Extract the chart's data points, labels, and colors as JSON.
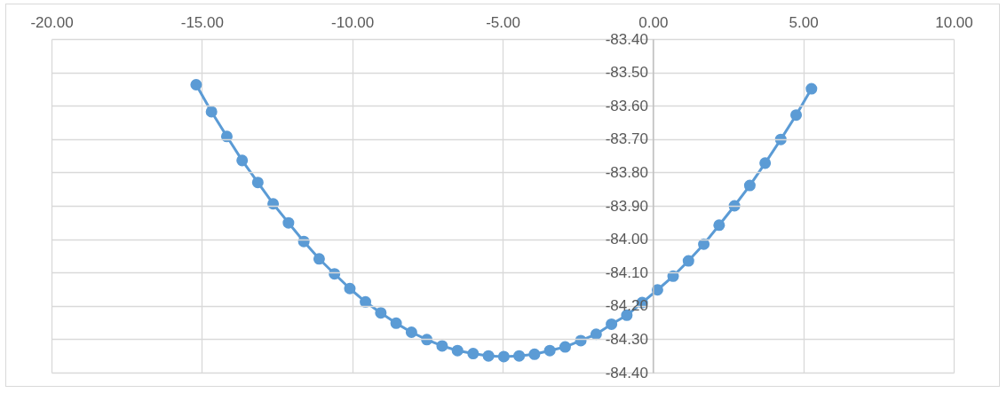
{
  "chart_data": {
    "type": "line",
    "line_style": "solid",
    "marker": "circle",
    "grid": true,
    "xlim": [
      -20,
      10
    ],
    "xticks": [
      {
        "value": -20,
        "label": "-20.00"
      },
      {
        "value": -15,
        "label": "-15.00"
      },
      {
        "value": -10,
        "label": "-10.00"
      },
      {
        "value": -5,
        "label": "-5.00"
      },
      {
        "value": 0,
        "label": "0.00"
      },
      {
        "value": 5,
        "label": "5.00"
      },
      {
        "value": 10,
        "label": "10.00"
      }
    ],
    "ylim": [
      -84.4,
      -83.4
    ],
    "yticks": [
      {
        "value": -84.4,
        "label": "-84.40"
      },
      {
        "value": -84.3,
        "label": "-84.30"
      },
      {
        "value": -84.2,
        "label": "-84.20"
      },
      {
        "value": -84.1,
        "label": "-84.10"
      },
      {
        "value": -84.0,
        "label": "-84.00"
      },
      {
        "value": -83.9,
        "label": "-83.90"
      },
      {
        "value": -83.8,
        "label": "-83.80"
      },
      {
        "value": -83.7,
        "label": "-83.70"
      },
      {
        "value": -83.6,
        "label": "-83.60"
      },
      {
        "value": -83.5,
        "label": "-83.50"
      },
      {
        "value": -83.4,
        "label": "-83.40"
      }
    ],
    "series": [
      {
        "color": "#5b9bd5",
        "x": [
          -15.19,
          -14.68,
          -14.17,
          -13.66,
          -13.14,
          -12.63,
          -12.12,
          -11.61,
          -11.1,
          -10.59,
          -10.08,
          -9.56,
          -9.05,
          -8.54,
          -8.03,
          -7.52,
          -7.01,
          -6.5,
          -5.98,
          -5.47,
          -4.96,
          -4.45,
          -3.94,
          -3.43,
          -2.92,
          -2.4,
          -1.89,
          -1.38,
          -0.87,
          -0.36,
          0.15,
          0.67,
          1.18,
          1.69,
          2.2,
          2.71,
          3.22,
          3.73,
          4.25,
          4.76,
          5.27
        ],
        "values": [
          -83.537,
          -83.618,
          -83.692,
          -83.764,
          -83.83,
          -83.894,
          -83.951,
          -84.007,
          -84.059,
          -84.104,
          -84.148,
          -84.188,
          -84.221,
          -84.252,
          -84.279,
          -84.301,
          -84.32,
          -84.334,
          -84.343,
          -84.35,
          -84.352,
          -84.35,
          -84.345,
          -84.334,
          -84.323,
          -84.304,
          -84.285,
          -84.255,
          -84.228,
          -84.19,
          -84.152,
          -84.111,
          -84.065,
          -84.015,
          -83.958,
          -83.9,
          -83.839,
          -83.772,
          -83.701,
          -83.628,
          -83.549
        ]
      }
    ]
  }
}
